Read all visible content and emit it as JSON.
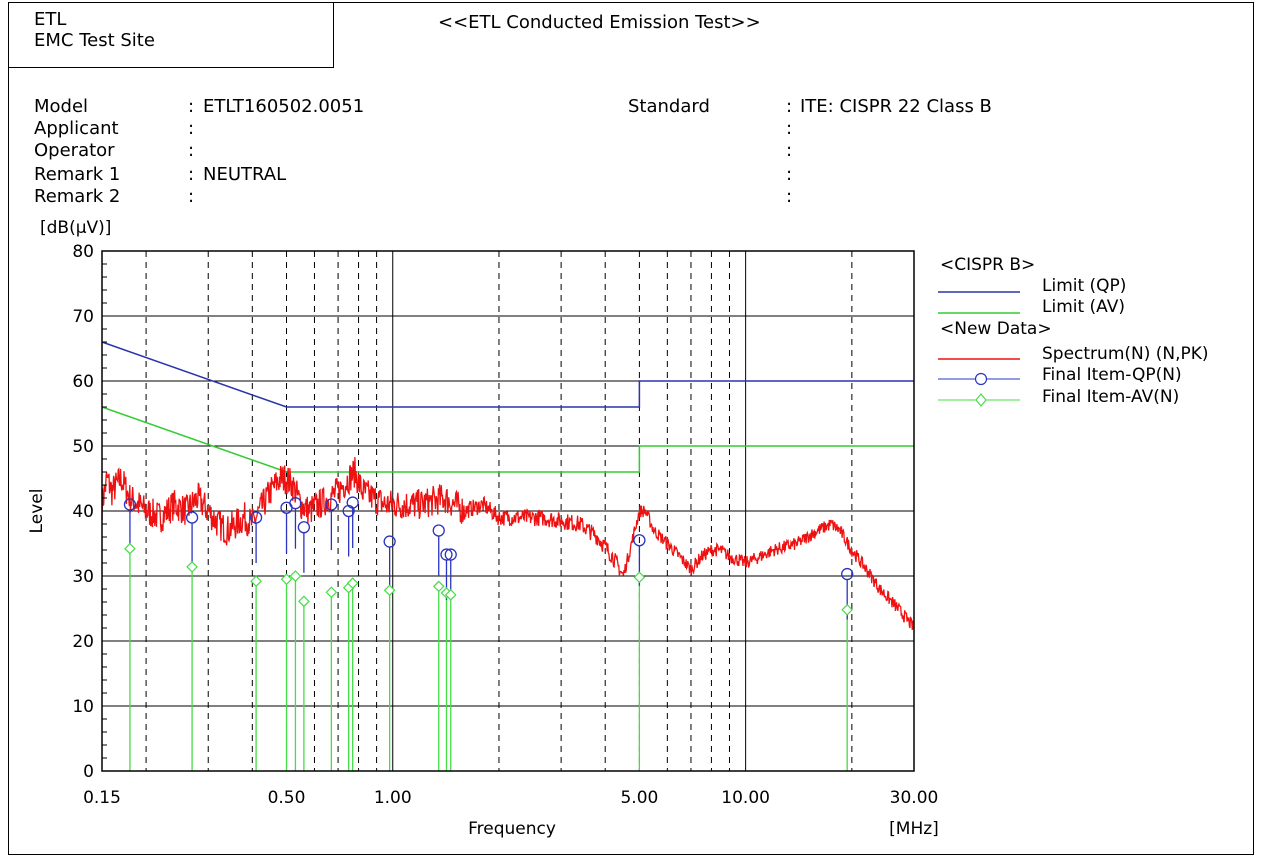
{
  "header": {
    "site_line1": "ETL",
    "site_line2": "EMC Test Site",
    "title": "<<ETL Conducted Emission Test>>"
  },
  "info": {
    "model_label": "Model",
    "model_value": "ETLT160502.0051",
    "applicant_label": "Applicant",
    "applicant_value": "",
    "operator_label": "Operator",
    "operator_value": "",
    "remark1_label": "Remark 1",
    "remark1_value": "NEUTRAL",
    "remark2_label": "Remark 2",
    "remark2_value": "",
    "standard_label": "Standard",
    "standard_value": "ITE: CISPR 22 Class B",
    "colon": ":"
  },
  "legend": {
    "group1": "<CISPR B>",
    "limit_qp": "Limit (QP)",
    "limit_av": "Limit (AV)",
    "group2": "<New Data>",
    "spectrum": "Spectrum(N) (N,PK)",
    "final_qp": "Final Item-QP(N)",
    "final_av": "Final Item-AV(N)"
  },
  "colors": {
    "limit_qp": "#2a34a8",
    "limit_av": "#33cc33",
    "spectrum": "#ee1111",
    "final_qp": "#2a34c0",
    "final_av": "#44dd44"
  },
  "chart_data": {
    "type": "line",
    "x_scale": "log",
    "xlim": [
      0.15,
      30
    ],
    "ylim": [
      0,
      80
    ],
    "xlabel": "Frequency",
    "xunit": "[MHz]",
    "ylabel": "Level",
    "yunit": "[dB(µV)]",
    "y_ticks": [
      0,
      10,
      20,
      30,
      40,
      50,
      60,
      70,
      80
    ],
    "x_tick_labels": [
      {
        "value": 0.15,
        "label": "0.15"
      },
      {
        "value": 0.5,
        "label": "0.50"
      },
      {
        "value": 1.0,
        "label": "1.00"
      },
      {
        "value": 5.0,
        "label": "5.00"
      },
      {
        "value": 10.0,
        "label": "10.00"
      },
      {
        "value": 30.0,
        "label": "30.00"
      }
    ],
    "grid": true,
    "legend_position": "right",
    "limit_qp": [
      [
        0.15,
        66
      ],
      [
        0.5,
        56
      ],
      [
        5.0,
        56
      ],
      [
        5.0,
        60
      ],
      [
        30.0,
        60
      ]
    ],
    "limit_av": [
      [
        0.15,
        56
      ],
      [
        0.5,
        46
      ],
      [
        5.0,
        46
      ],
      [
        5.0,
        50
      ],
      [
        30.0,
        50
      ]
    ],
    "spectrum_points": [
      [
        0.15,
        41
      ],
      [
        0.155,
        45
      ],
      [
        0.16,
        43
      ],
      [
        0.17,
        45
      ],
      [
        0.18,
        42
      ],
      [
        0.19,
        41
      ],
      [
        0.2,
        40
      ],
      [
        0.22,
        39
      ],
      [
        0.24,
        41
      ],
      [
        0.26,
        40
      ],
      [
        0.28,
        42
      ],
      [
        0.3,
        40
      ],
      [
        0.32,
        38
      ],
      [
        0.34,
        37
      ],
      [
        0.36,
        38
      ],
      [
        0.38,
        39
      ],
      [
        0.4,
        38
      ],
      [
        0.42,
        40
      ],
      [
        0.45,
        43
      ],
      [
        0.48,
        45
      ],
      [
        0.5,
        45
      ],
      [
        0.52,
        44
      ],
      [
        0.55,
        41
      ],
      [
        0.58,
        40
      ],
      [
        0.62,
        41
      ],
      [
        0.66,
        42
      ],
      [
        0.7,
        43
      ],
      [
        0.75,
        45
      ],
      [
        0.78,
        46
      ],
      [
        0.82,
        43
      ],
      [
        0.88,
        42
      ],
      [
        0.95,
        41
      ],
      [
        1.0,
        41
      ],
      [
        1.1,
        41
      ],
      [
        1.2,
        41
      ],
      [
        1.4,
        42
      ],
      [
        1.6,
        40
      ],
      [
        1.8,
        41
      ],
      [
        2.0,
        39
      ],
      [
        2.3,
        39
      ],
      [
        2.6,
        39
      ],
      [
        3.0,
        38.5
      ],
      [
        3.4,
        38
      ],
      [
        3.8,
        36
      ],
      [
        4.2,
        33
      ],
      [
        4.5,
        30
      ],
      [
        4.7,
        34
      ],
      [
        5.0,
        40
      ],
      [
        5.2,
        40
      ],
      [
        5.5,
        37
      ],
      [
        6.0,
        35
      ],
      [
        6.5,
        33
      ],
      [
        7.0,
        31
      ],
      [
        7.5,
        33
      ],
      [
        8.0,
        34
      ],
      [
        8.5,
        34
      ],
      [
        9.0,
        33
      ],
      [
        10.0,
        32
      ],
      [
        11.0,
        33
      ],
      [
        12.0,
        34
      ],
      [
        14.0,
        35
      ],
      [
        16.0,
        37
      ],
      [
        17.5,
        38
      ],
      [
        18.5,
        37
      ],
      [
        20.0,
        34
      ],
      [
        22.0,
        31
      ],
      [
        24.0,
        28
      ],
      [
        26.0,
        26
      ],
      [
        28.0,
        24
      ],
      [
        30.0,
        22
      ]
    ],
    "final_qp": [
      [
        0.18,
        41
      ],
      [
        0.27,
        39
      ],
      [
        0.41,
        39
      ],
      [
        0.5,
        40.5
      ],
      [
        0.53,
        41.2
      ],
      [
        0.56,
        37.5
      ],
      [
        0.67,
        41
      ],
      [
        0.75,
        40
      ],
      [
        0.77,
        41.3
      ],
      [
        0.98,
        35.3
      ],
      [
        1.35,
        37
      ],
      [
        1.42,
        33.3
      ],
      [
        1.46,
        33.3
      ],
      [
        5.0,
        35.5
      ],
      [
        19.4,
        30.3
      ]
    ],
    "final_av": [
      [
        0.18,
        34.2
      ],
      [
        0.27,
        31.4
      ],
      [
        0.41,
        29.2
      ],
      [
        0.5,
        29.5
      ],
      [
        0.53,
        30
      ],
      [
        0.56,
        26.1
      ],
      [
        0.67,
        27.5
      ],
      [
        0.75,
        28.2
      ],
      [
        0.77,
        28.9
      ],
      [
        0.98,
        27.8
      ],
      [
        1.35,
        28.4
      ],
      [
        1.42,
        27.4
      ],
      [
        1.46,
        27.1
      ],
      [
        5.0,
        29.8
      ],
      [
        19.4,
        24.8
      ]
    ]
  }
}
